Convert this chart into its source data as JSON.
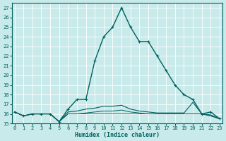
{
  "series": [
    {
      "x": [
        0,
        1,
        2,
        3,
        4,
        5,
        6,
        7,
        8,
        9,
        10,
        11,
        12,
        13,
        14,
        15,
        16,
        17,
        18,
        19,
        20,
        21,
        22,
        23
      ],
      "y": [
        16.2,
        15.8,
        16.0,
        16.0,
        16.0,
        15.2,
        16.5,
        17.5,
        17.5,
        21.5,
        24.0,
        25.0,
        27.0,
        25.0,
        23.5,
        23.5,
        22.0,
        20.5,
        19.0,
        18.0,
        17.5,
        16.0,
        16.2,
        15.5
      ],
      "color": "#006060",
      "lw": 1.0,
      "marker": true,
      "linestyle": "-"
    },
    {
      "x": [
        0,
        1,
        2,
        3,
        4,
        5,
        6,
        7,
        8,
        9,
        10,
        11,
        12,
        13,
        14,
        15,
        16,
        17,
        18,
        19,
        20,
        21,
        22,
        23
      ],
      "y": [
        16.2,
        15.8,
        16.0,
        16.0,
        16.0,
        15.2,
        16.2,
        16.3,
        16.5,
        16.6,
        16.8,
        16.8,
        16.9,
        16.5,
        16.3,
        16.2,
        16.1,
        16.1,
        16.1,
        16.1,
        17.2,
        16.0,
        15.9,
        15.5
      ],
      "color": "#006060",
      "lw": 0.8,
      "marker": false,
      "linestyle": "-"
    },
    {
      "x": [
        0,
        1,
        2,
        3,
        4,
        5,
        6,
        7,
        8,
        9,
        10,
        11,
        12,
        13,
        14,
        15,
        16,
        17,
        18,
        19,
        20,
        21,
        22,
        23
      ],
      "y": [
        16.2,
        15.8,
        16.0,
        16.0,
        16.0,
        15.2,
        16.0,
        16.0,
        16.1,
        16.2,
        16.3,
        16.3,
        16.4,
        16.2,
        16.1,
        16.0,
        16.0,
        16.0,
        16.0,
        16.0,
        16.0,
        16.0,
        15.8,
        15.5
      ],
      "color": "#006060",
      "lw": 0.7,
      "marker": false,
      "linestyle": "-"
    },
    {
      "x": [
        0,
        1,
        2,
        3,
        4,
        5,
        6,
        7,
        8,
        9,
        10,
        11,
        12,
        13,
        14,
        15,
        16,
        17,
        18,
        19,
        20,
        21,
        22,
        23
      ],
      "y": [
        16.2,
        15.8,
        16.0,
        16.0,
        16.0,
        15.2,
        16.0,
        16.0,
        16.0,
        16.0,
        16.0,
        16.0,
        16.0,
        16.0,
        16.0,
        16.0,
        16.0,
        16.0,
        16.0,
        16.0,
        16.0,
        16.0,
        15.8,
        15.5
      ],
      "color": "#006060",
      "lw": 0.6,
      "marker": false,
      "linestyle": "-"
    }
  ],
  "xlim": [
    -0.3,
    23.3
  ],
  "ylim": [
    15.0,
    27.5
  ],
  "xticks": [
    0,
    1,
    2,
    3,
    4,
    5,
    6,
    7,
    8,
    9,
    10,
    11,
    12,
    13,
    14,
    15,
    16,
    17,
    18,
    19,
    20,
    21,
    22,
    23
  ],
  "yticks": [
    15,
    16,
    17,
    18,
    19,
    20,
    21,
    22,
    23,
    24,
    25,
    26,
    27
  ],
  "xlabel": "Humidex (Indice chaleur)",
  "bg_color": "#c8eaea",
  "grid_color": "#ffffff",
  "tick_color": "#006060",
  "label_color": "#006060"
}
